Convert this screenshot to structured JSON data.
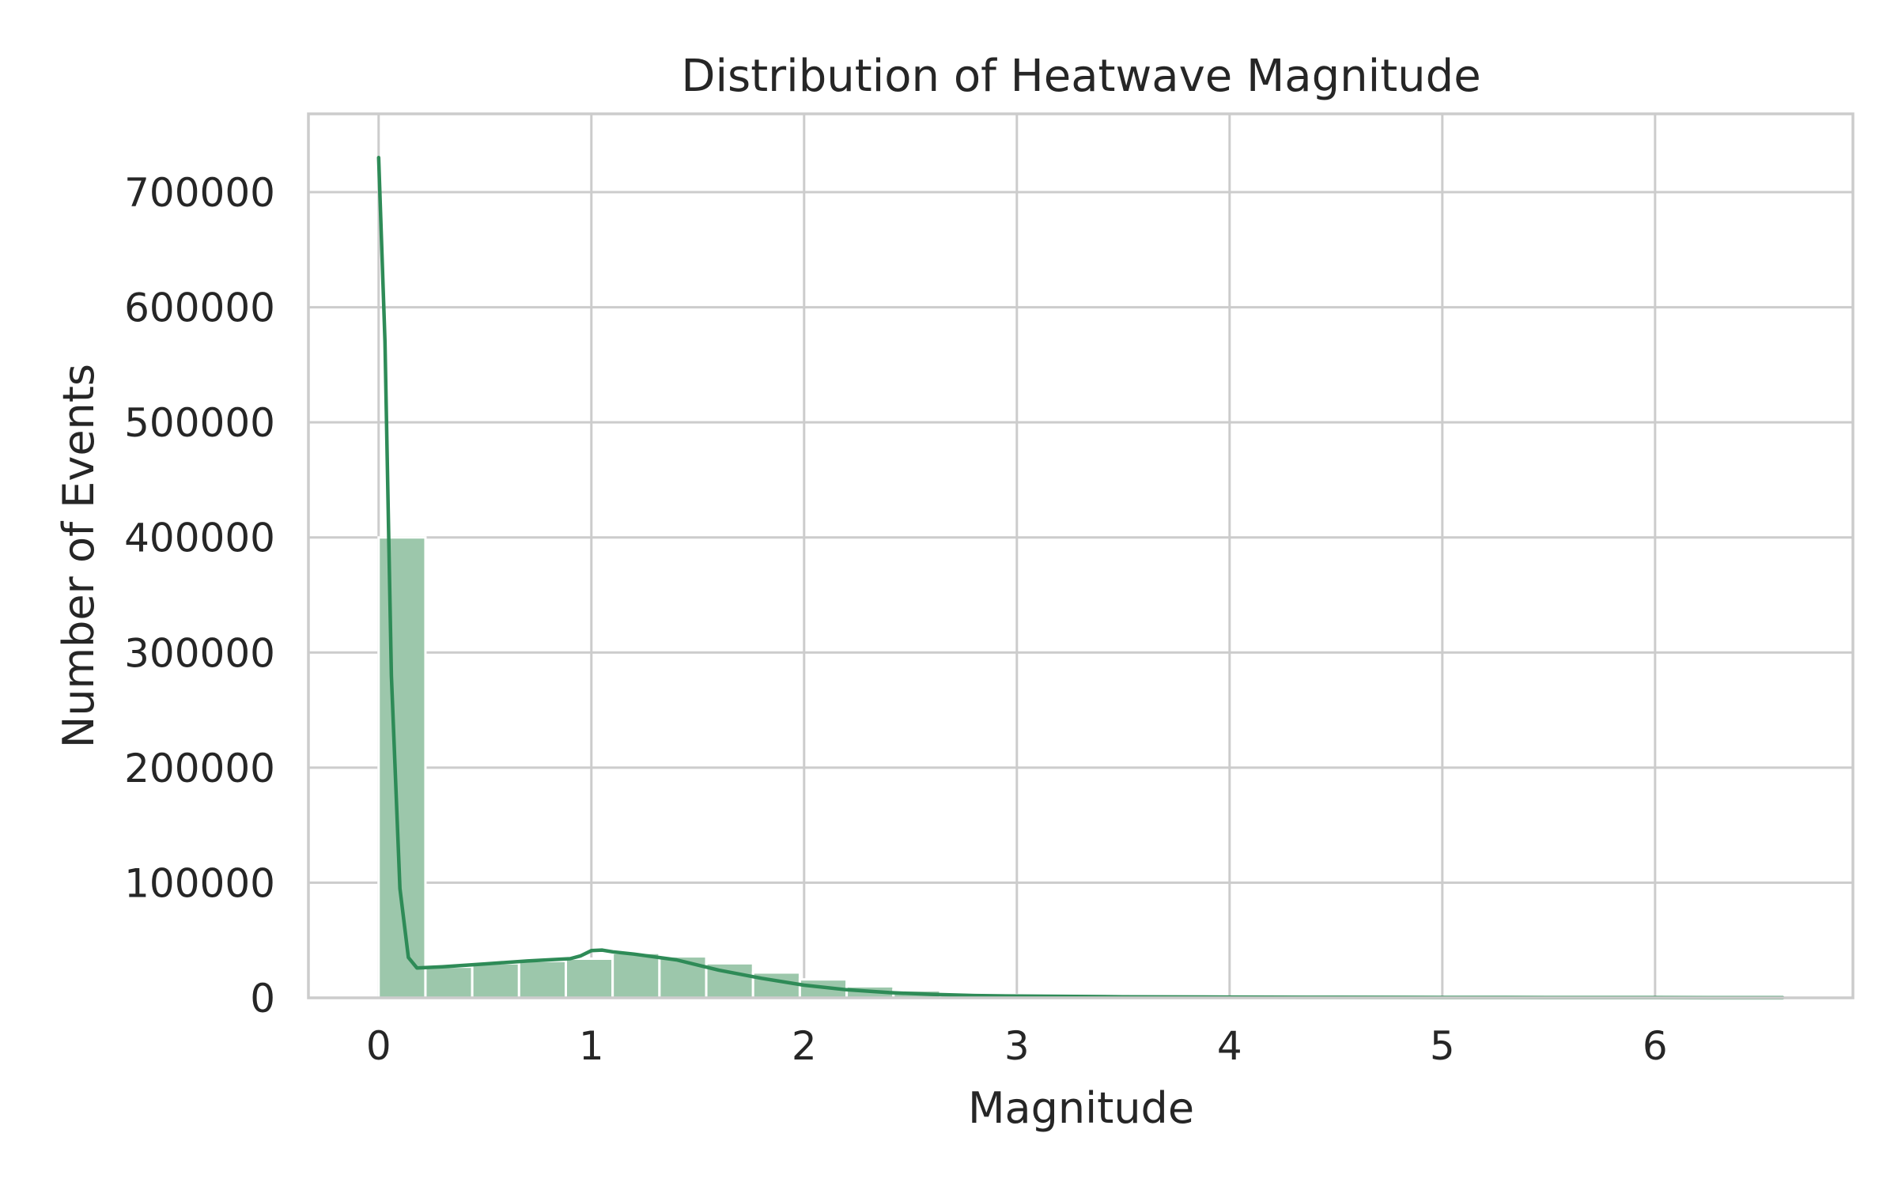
{
  "chart_data": {
    "type": "bar",
    "title": "Distribution of Heatwave Magnitude",
    "xlabel": "Magnitude",
    "ylabel": "Number of Events",
    "xlim": [
      -0.33,
      6.93
    ],
    "ylim": [
      0,
      768000
    ],
    "xticks": [
      0,
      1,
      2,
      3,
      4,
      5,
      6
    ],
    "yticks": [
      0,
      100000,
      200000,
      300000,
      400000,
      500000,
      600000,
      700000
    ],
    "grid": true,
    "colors": {
      "bars": "#9cc7ab",
      "kde": "#2e8b57",
      "grid": "#cccccc"
    },
    "histogram": {
      "bin_edges": [
        0,
        0.22,
        0.44,
        0.66,
        0.88,
        1.1,
        1.32,
        1.54,
        1.76,
        1.98,
        2.2,
        2.42,
        2.64,
        2.86,
        3.08,
        3.3,
        3.52,
        3.74,
        3.96,
        4.18,
        4.4,
        4.62,
        4.84,
        5.06,
        5.28,
        5.5,
        5.72,
        5.94,
        6.16,
        6.38,
        6.6
      ],
      "counts": [
        400000,
        27000,
        30000,
        32000,
        34000,
        39000,
        36000,
        30000,
        22000,
        16000,
        10000,
        6500,
        4000,
        2500,
        1500,
        1000,
        700,
        500,
        400,
        300,
        250,
        200,
        150,
        120,
        100,
        80,
        60,
        50,
        40,
        30
      ]
    },
    "kde": {
      "x": [
        0,
        0.03,
        0.06,
        0.1,
        0.14,
        0.18,
        0.3,
        0.5,
        0.7,
        0.9,
        0.95,
        1.0,
        1.05,
        1.1,
        1.2,
        1.4,
        1.6,
        1.8,
        2.0,
        2.2,
        2.4,
        2.6,
        2.8,
        3.0,
        3.5,
        4.0,
        4.5,
        5.0,
        5.5,
        6.0,
        6.6
      ],
      "y": [
        730000,
        570000,
        280000,
        95000,
        35000,
        26000,
        27000,
        29500,
        32000,
        34000,
        36500,
        41000,
        41500,
        40000,
        38000,
        33000,
        24000,
        17000,
        11000,
        7000,
        4500,
        3000,
        2000,
        1500,
        900,
        600,
        400,
        300,
        200,
        150,
        100
      ]
    }
  }
}
